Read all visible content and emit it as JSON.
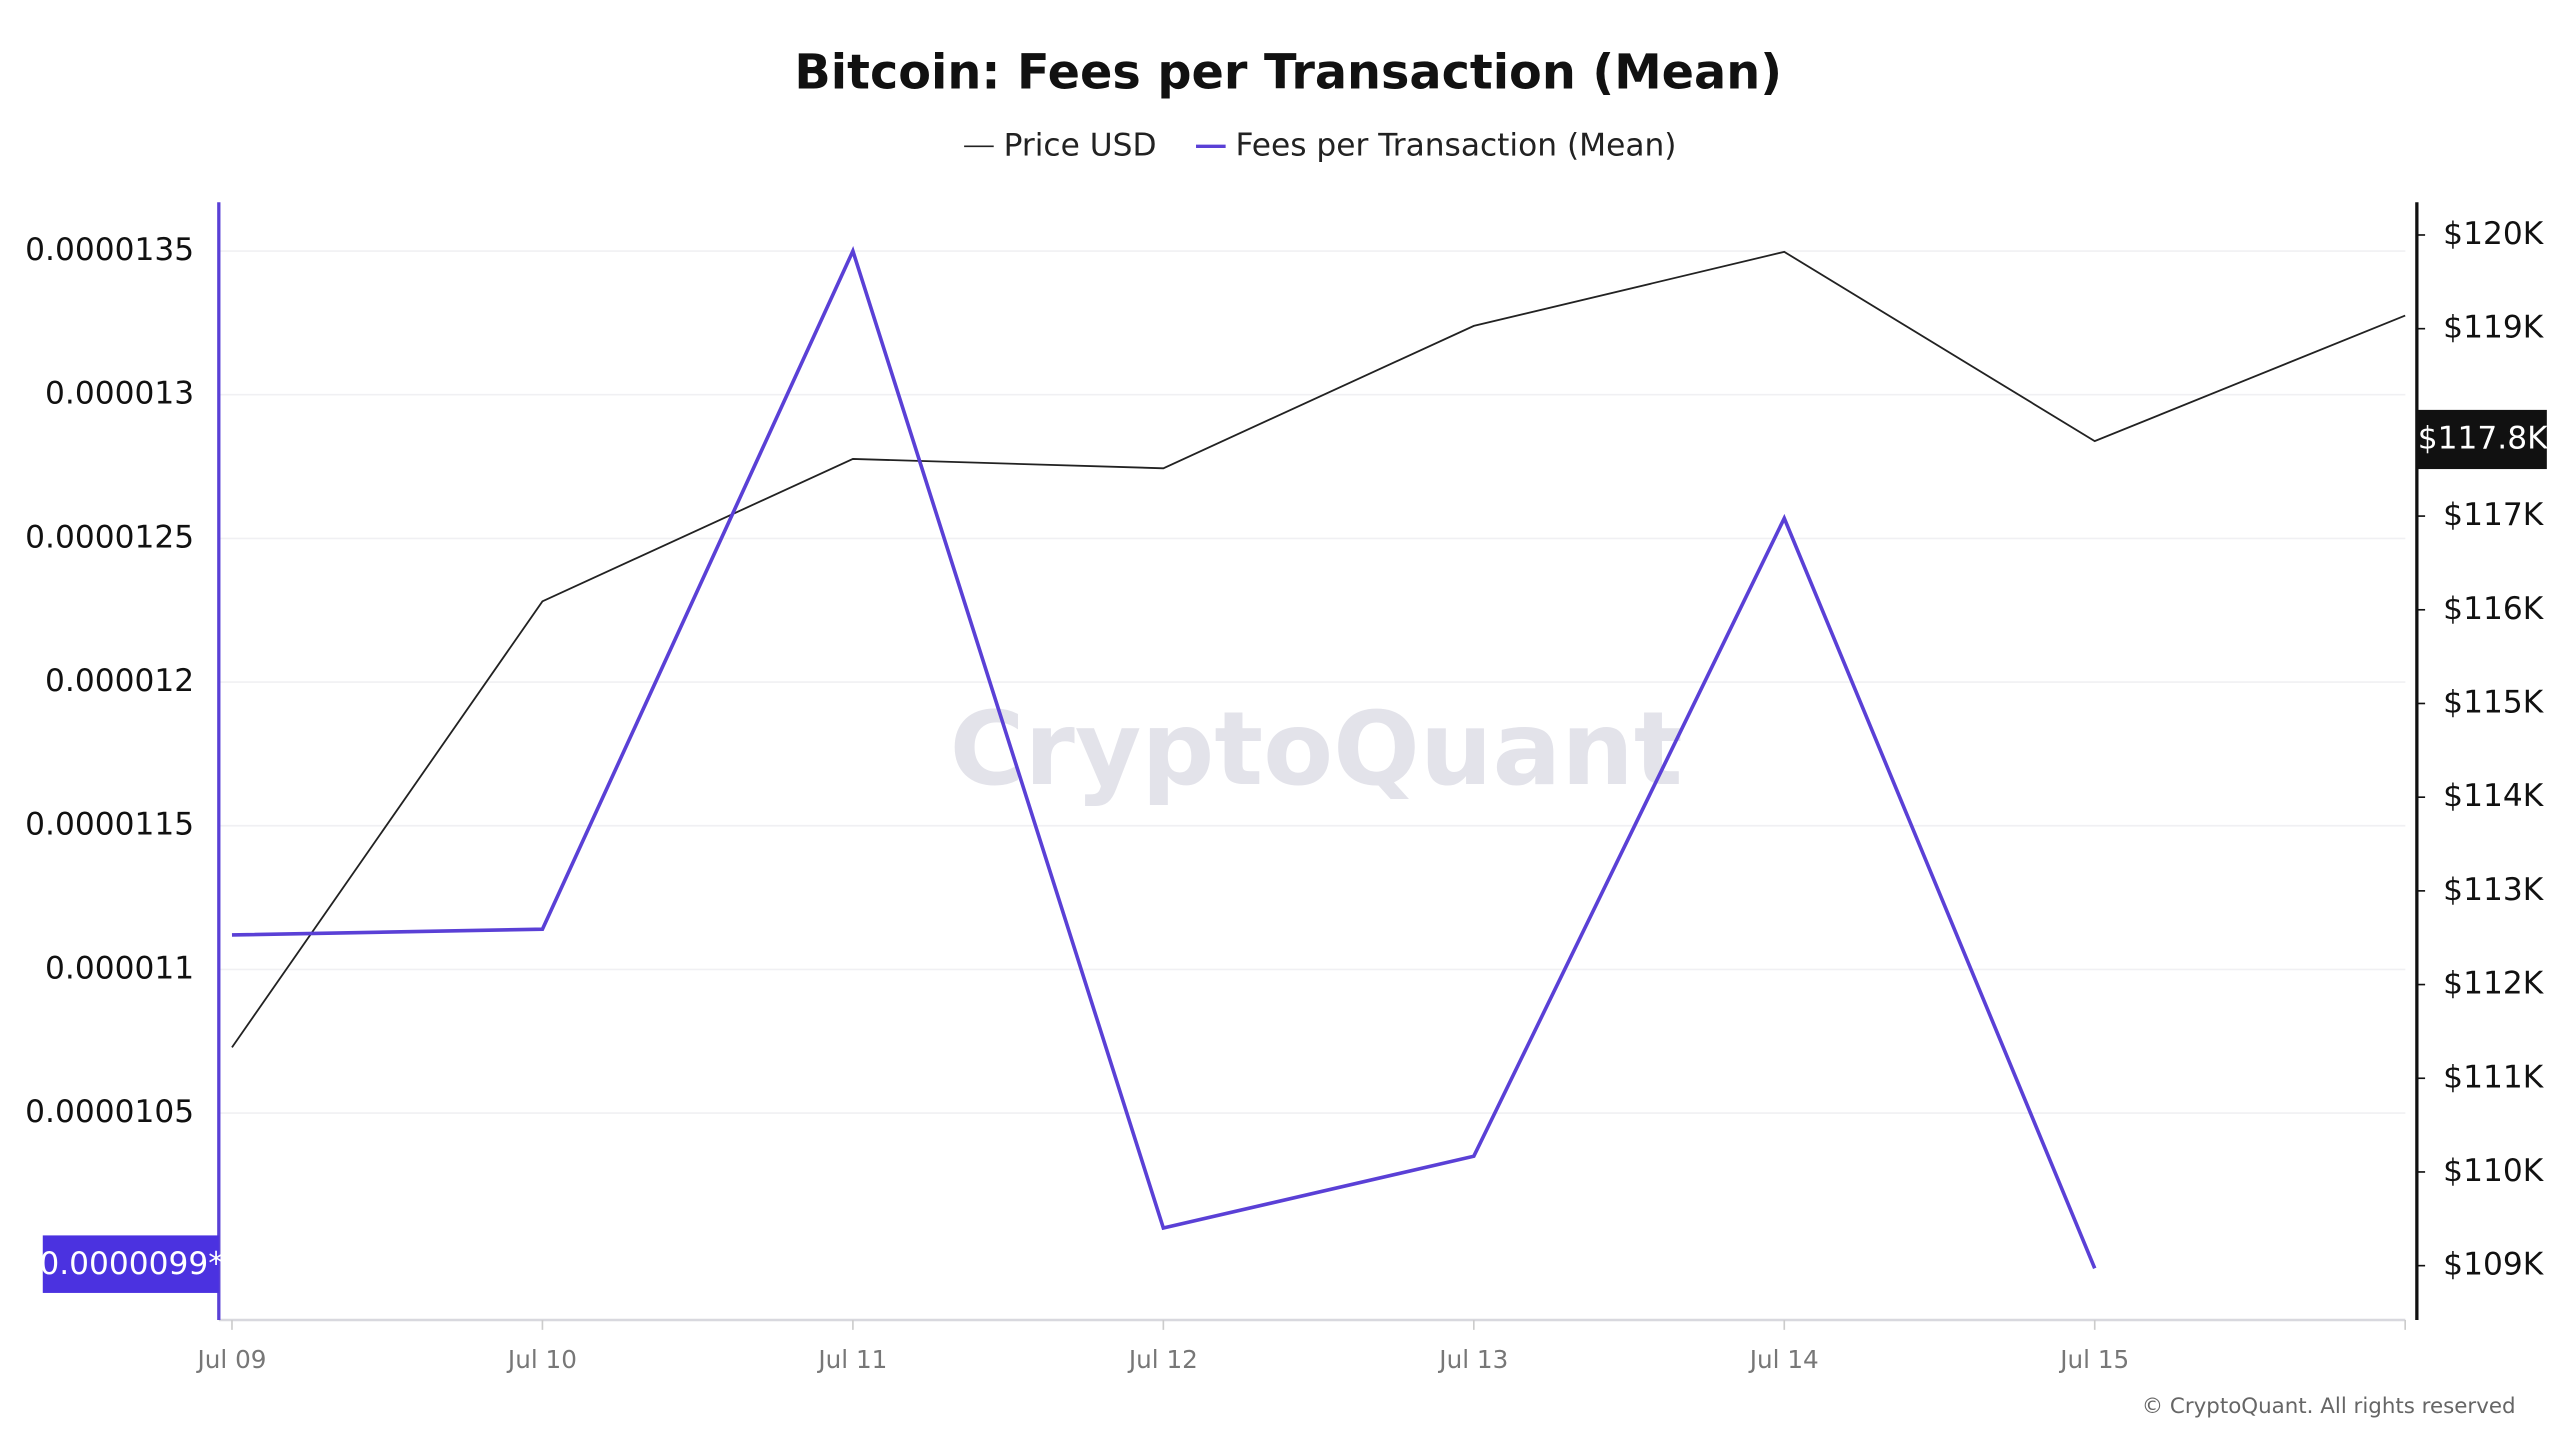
{
  "chart_data": {
    "type": "line",
    "title": "Bitcoin: Fees per Transaction (Mean)",
    "watermark": "CryptoQuant",
    "copyright": "© CryptoQuant. All rights reserved",
    "categories": [
      "Jul 09",
      "Jul 10",
      "Jul 11",
      "Jul 12",
      "Jul 13",
      "Jul 14",
      "Jul 15",
      null
    ],
    "series": [
      {
        "name": "Price USD",
        "color": "#222222",
        "axis": "y2",
        "values": [
          111330,
          116090,
          117610,
          117510,
          119030,
          119820,
          117800,
          119140
        ]
      },
      {
        "name": "Fees per Transaction (Mean)",
        "color": "#5a40d6",
        "axis": "y",
        "values": [
          1.112e-05,
          1.114e-05,
          1.35e-05,
          1.01e-05,
          1.035e-05,
          1.257e-05,
          9.96e-06,
          null
        ]
      }
    ],
    "ylim": [
      9.78e-06,
      1.367e-05
    ],
    "yticks": [
      {
        "value": 1.05e-05,
        "label": "0.0000105"
      },
      {
        "value": 1.1e-05,
        "label": "0.000011"
      },
      {
        "value": 1.15e-05,
        "label": "0.0000115"
      },
      {
        "value": 1.2e-05,
        "label": "0.000012"
      },
      {
        "value": 1.25e-05,
        "label": "0.0000125"
      },
      {
        "value": 1.3e-05,
        "label": "0.000013"
      },
      {
        "value": 1.35e-05,
        "label": "0.0000135"
      }
    ],
    "y2lim": [
      108420,
      120350
    ],
    "y2ticks": [
      {
        "value": 109000,
        "label": "$109K"
      },
      {
        "value": 110000,
        "label": "$110K"
      },
      {
        "value": 111000,
        "label": "$111K"
      },
      {
        "value": 112000,
        "label": "$112K"
      },
      {
        "value": 113000,
        "label": "$113K"
      },
      {
        "value": 114000,
        "label": "$114K"
      },
      {
        "value": 115000,
        "label": "$115K"
      },
      {
        "value": 116000,
        "label": "$116K"
      },
      {
        "value": 117000,
        "label": "$117K"
      },
      {
        "value": 119000,
        "label": "$119K"
      },
      {
        "value": 120000,
        "label": "$120K"
      }
    ],
    "y_marker_label": "0.0000099*",
    "y2_marker_label": "$117.8K",
    "grid": true,
    "legend": "top"
  }
}
